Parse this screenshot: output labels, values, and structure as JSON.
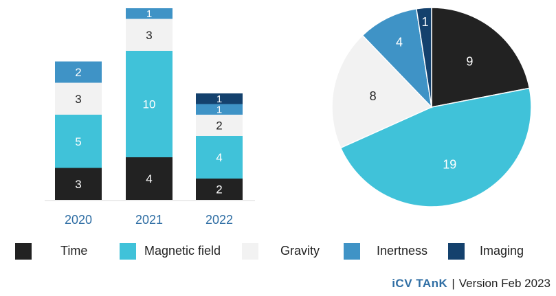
{
  "chart_data": [
    {
      "type": "bar",
      "stacked": true,
      "categories": [
        "2020",
        "2021",
        "2022"
      ],
      "series": [
        {
          "name": "Time",
          "color": "#222222",
          "values": [
            3,
            4,
            2
          ]
        },
        {
          "name": "Magnetic field",
          "color": "#40c2d9",
          "values": [
            5,
            10,
            4
          ]
        },
        {
          "name": "Gravity",
          "color": "#f2f2f2",
          "values": [
            3,
            3,
            2
          ]
        },
        {
          "name": "Inertness",
          "color": "#3f93c6",
          "values": [
            2,
            1,
            1
          ]
        },
        {
          "name": "Imaging",
          "color": "#14416d",
          "values": [
            0,
            0,
            1
          ]
        }
      ],
      "ylim": [
        0,
        18
      ],
      "title": "",
      "xlabel": "",
      "ylabel": ""
    },
    {
      "type": "pie",
      "labels": [
        "Time",
        "Magnetic field",
        "Gravity",
        "Inertness",
        "Imaging"
      ],
      "values": [
        9,
        19,
        8,
        4,
        1
      ],
      "colors": [
        "#222222",
        "#40c2d9",
        "#f2f2f2",
        "#3f93c6",
        "#14416d"
      ],
      "title": ""
    }
  ],
  "legend": [
    {
      "label": "Time",
      "color": "#222222"
    },
    {
      "label": "Magnetic field",
      "color": "#40c2d9"
    },
    {
      "label": "Gravity",
      "color": "#f2f2f2"
    },
    {
      "label": "Inertness",
      "color": "#3f93c6"
    },
    {
      "label": "Imaging",
      "color": "#14416d"
    }
  ],
  "footer": {
    "brand": "iCV TAnK",
    "separator": "|",
    "version": "Version Feb 2023"
  }
}
